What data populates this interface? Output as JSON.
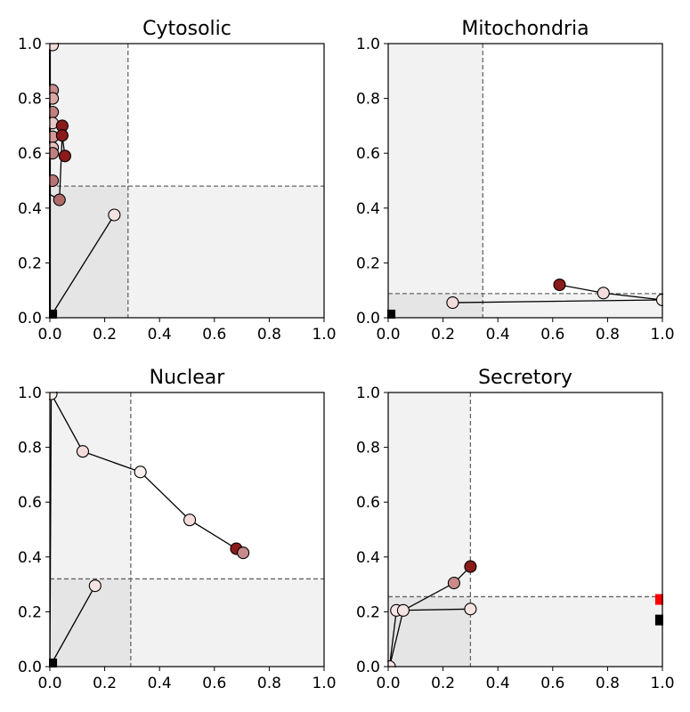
{
  "chart_data": [
    {
      "type": "scatter",
      "title": "Cytosolic",
      "xlim": [
        0,
        1
      ],
      "ylim": [
        0,
        1
      ],
      "xticks": [
        "0.0",
        "0.2",
        "0.4",
        "0.6",
        "0.8",
        "1.0"
      ],
      "yticks": [
        "0.0",
        "0.2",
        "0.4",
        "0.6",
        "0.8",
        "1.0"
      ],
      "threshold": {
        "x": 0.285,
        "y": 0.48
      },
      "square_markers": [
        {
          "x": 0.01,
          "y": 0.01,
          "color": "#000000"
        }
      ],
      "paths": [
        {
          "points": [
            [
              0.0,
              0.0
            ],
            [
              0.235,
              0.375
            ]
          ],
          "markers": [
            "#f6e4e2"
          ],
          "marker_start": 1
        },
        {
          "points": [
            [
              0.0,
              0.0
            ],
            [
              0.0,
              1.0
            ]
          ]
        },
        {
          "points": [
            [
              0.0,
              0.45
            ],
            [
              0.035,
              0.43
            ],
            [
              0.045,
              0.665
            ],
            [
              0.055,
              0.59
            ]
          ],
          "markers": [
            "#b06a6a",
            "#8b1a1a",
            "#8b1a1a"
          ],
          "marker_start": 1
        }
      ],
      "points": [
        {
          "x": 0.01,
          "y": 0.995,
          "color": "#f3dcda"
        },
        {
          "x": 0.01,
          "y": 0.83,
          "color": "#c98a8a"
        },
        {
          "x": 0.01,
          "y": 0.8,
          "color": "#d9a8a6"
        },
        {
          "x": 0.01,
          "y": 0.75,
          "color": "#c08080"
        },
        {
          "x": 0.01,
          "y": 0.71,
          "color": "#e8c8c6"
        },
        {
          "x": 0.045,
          "y": 0.7,
          "color": "#8b1a1a"
        },
        {
          "x": 0.01,
          "y": 0.66,
          "color": "#d29a98"
        },
        {
          "x": 0.01,
          "y": 0.62,
          "color": "#e6c2c0"
        },
        {
          "x": 0.01,
          "y": 0.6,
          "color": "#c08080"
        },
        {
          "x": 0.01,
          "y": 0.5,
          "color": "#b77474"
        }
      ]
    },
    {
      "type": "scatter",
      "title": "Mitochondria",
      "xlim": [
        0,
        1
      ],
      "ylim": [
        0,
        1
      ],
      "xticks": [
        "0.0",
        "0.2",
        "0.4",
        "0.6",
        "0.8",
        "1.0"
      ],
      "yticks": [
        "0.0",
        "0.2",
        "0.4",
        "0.6",
        "0.8",
        "1.0"
      ],
      "threshold": {
        "x": 0.345,
        "y": 0.088
      },
      "square_markers": [
        {
          "x": 0.01,
          "y": 0.01,
          "color": "#000000"
        }
      ],
      "paths": [
        {
          "points": [
            [
              0.625,
              0.12
            ],
            [
              0.785,
              0.09
            ],
            [
              1.0,
              0.065
            ],
            [
              0.235,
              0.055
            ]
          ],
          "markers": [
            "#8b1a1a",
            "#f3dcda",
            "#faf0ee",
            "#f3dcda"
          ],
          "marker_start": 0
        }
      ],
      "points": []
    },
    {
      "type": "scatter",
      "title": "Nuclear",
      "xlim": [
        0,
        1
      ],
      "ylim": [
        0,
        1
      ],
      "xticks": [
        "0.0",
        "0.2",
        "0.4",
        "0.6",
        "0.8",
        "1.0"
      ],
      "yticks": [
        "0.0",
        "0.2",
        "0.4",
        "0.6",
        "0.8",
        "1.0"
      ],
      "threshold": {
        "x": 0.295,
        "y": 0.32
      },
      "square_markers": [
        {
          "x": 0.01,
          "y": 0.01,
          "color": "#000000"
        }
      ],
      "paths": [
        {
          "points": [
            [
              0.0,
              0.0
            ],
            [
              0.165,
              0.295
            ]
          ],
          "markers": [
            "#f6e4e2"
          ],
          "marker_start": 1
        },
        {
          "points": [
            [
              0.0,
              0.0
            ],
            [
              0.005,
              0.995
            ],
            [
              0.12,
              0.785
            ],
            [
              0.33,
              0.71
            ],
            [
              0.51,
              0.535
            ],
            [
              0.68,
              0.43
            ],
            [
              0.705,
              0.415
            ]
          ],
          "markers": [
            "#faf0ee",
            "#f3dcda",
            "#faf0ee",
            "#f3dcda",
            "#8b1a1a",
            "#c98a8a"
          ],
          "marker_start": 1
        }
      ],
      "points": []
    },
    {
      "type": "scatter",
      "title": "Secretory",
      "xlim": [
        0,
        1
      ],
      "ylim": [
        0,
        1
      ],
      "xticks": [
        "0.0",
        "0.2",
        "0.4",
        "0.6",
        "0.8",
        "1.0"
      ],
      "yticks": [
        "0.0",
        "0.2",
        "0.4",
        "0.6",
        "0.8",
        "1.0"
      ],
      "threshold": {
        "x": 0.3,
        "y": 0.255
      },
      "square_markers": [
        {
          "x": 0.99,
          "y": 0.245,
          "color": "#ff0000"
        },
        {
          "x": 0.99,
          "y": 0.17,
          "color": "#000000"
        }
      ],
      "paths": [
        {
          "points": [
            [
              0.005,
              0.0
            ],
            [
              0.03,
              0.205
            ],
            [
              0.3,
              0.21
            ]
          ],
          "markers": [
            "#f6e4e2",
            "#f6e4e2",
            "#f6e4e2"
          ],
          "marker_start": 0
        },
        {
          "points": [
            [
              0.005,
              0.0
            ],
            [
              0.055,
              0.205
            ],
            [
              0.24,
              0.305
            ],
            [
              0.3,
              0.365
            ]
          ],
          "markers": [
            "#f6e4e2",
            "#c98a8a",
            "#8b1a1a"
          ],
          "marker_start": 1
        }
      ],
      "points": []
    }
  ]
}
